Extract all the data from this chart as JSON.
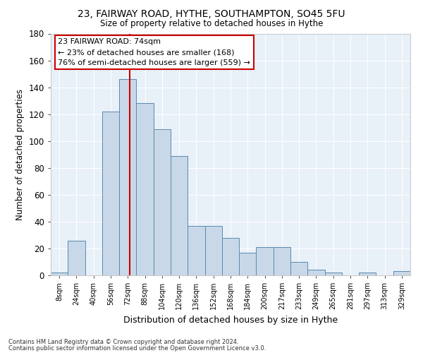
{
  "title1": "23, FAIRWAY ROAD, HYTHE, SOUTHAMPTON, SO45 5FU",
  "title2": "Size of property relative to detached houses in Hythe",
  "xlabel": "Distribution of detached houses by size in Hythe",
  "ylabel": "Number of detached properties",
  "categories": [
    "8sqm",
    "24sqm",
    "40sqm",
    "56sqm",
    "72sqm",
    "88sqm",
    "104sqm",
    "120sqm",
    "136sqm",
    "152sqm",
    "168sqm",
    "184sqm",
    "200sqm",
    "217sqm",
    "233sqm",
    "249sqm",
    "265sqm",
    "281sqm",
    "297sqm",
    "313sqm",
    "329sqm"
  ],
  "values": [
    2,
    26,
    0,
    122,
    146,
    128,
    109,
    89,
    37,
    37,
    28,
    17,
    21,
    21,
    10,
    4,
    2,
    0,
    2,
    0,
    3
  ],
  "bar_color": "#c8d8e8",
  "bar_edge_color": "#5a8ab0",
  "vline_color": "#cc0000",
  "annotation_text": "23 FAIRWAY ROAD: 74sqm\n← 23% of detached houses are smaller (168)\n76% of semi-detached houses are larger (559) →",
  "annotation_box_color": "#ffffff",
  "annotation_box_edge": "#cc0000",
  "ylim": [
    0,
    180
  ],
  "yticks": [
    0,
    20,
    40,
    60,
    80,
    100,
    120,
    140,
    160,
    180
  ],
  "footnote1": "Contains HM Land Registry data © Crown copyright and database right 2024.",
  "footnote2": "Contains public sector information licensed under the Open Government Licence v3.0.",
  "bin_width": 16,
  "property_size": 74,
  "n_bins": 21
}
